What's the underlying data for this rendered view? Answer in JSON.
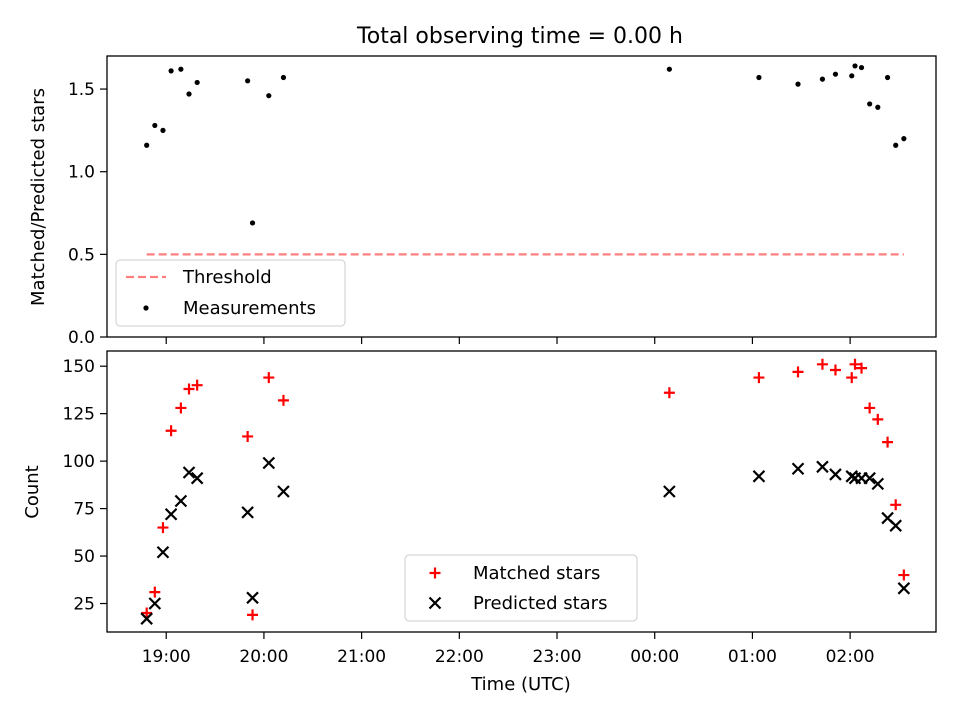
{
  "title": "Total observing time = 0.00 h",
  "time_ticks": [
    "19:00",
    "20:00",
    "21:00",
    "22:00",
    "23:00",
    "00:00",
    "01:00",
    "02:00"
  ],
  "chart_data": [
    {
      "type": "scatter",
      "ylabel": "Matched/Predicted stars",
      "xlabel": "",
      "ylim": [
        0.0,
        1.7
      ],
      "yticks": [
        "0.0",
        "0.5",
        "1.0",
        "1.5"
      ],
      "legend_placement": "lower-left",
      "threshold": {
        "name": "Threshold",
        "value": 0.5,
        "x_start": "18:48",
        "x_end": "02:33",
        "color": "#ff7f7f",
        "style": "dashed"
      },
      "series": [
        {
          "name": "Measurements",
          "color": "#000000",
          "marker": "dot",
          "x": [
            "18:48",
            "18:53",
            "18:58",
            "19:03",
            "19:09",
            "19:14",
            "19:19",
            "19:50",
            "19:53",
            "20:03",
            "20:12",
            "00:09",
            "01:04",
            "01:28",
            "01:43",
            "01:51",
            "02:01",
            "02:03",
            "02:07",
            "02:12",
            "02:17",
            "02:23",
            "02:28",
            "02:33"
          ],
          "y": [
            1.16,
            1.28,
            1.25,
            1.61,
            1.62,
            1.47,
            1.54,
            1.55,
            0.69,
            1.46,
            1.57,
            1.62,
            1.57,
            1.53,
            1.56,
            1.59,
            1.58,
            1.64,
            1.63,
            1.41,
            1.39,
            1.57,
            1.16,
            1.2
          ]
        }
      ]
    },
    {
      "type": "scatter",
      "ylabel": "Count",
      "xlabel": "Time (UTC)",
      "ylim": [
        10,
        158
      ],
      "yticks": [
        "25",
        "50",
        "75",
        "100",
        "125",
        "150"
      ],
      "legend_placement": "lower-center",
      "series": [
        {
          "name": "Matched stars",
          "color": "#ff0000",
          "marker": "plus",
          "x": [
            "18:48",
            "18:53",
            "18:58",
            "19:03",
            "19:09",
            "19:14",
            "19:19",
            "19:50",
            "19:53",
            "20:03",
            "20:12",
            "00:09",
            "01:04",
            "01:28",
            "01:43",
            "01:51",
            "02:01",
            "02:03",
            "02:07",
            "02:12",
            "02:17",
            "02:23",
            "02:28",
            "02:33"
          ],
          "y": [
            20,
            31,
            65,
            116,
            128,
            138,
            140,
            113,
            19,
            144,
            132,
            136,
            144,
            147,
            151,
            148,
            144,
            151,
            149,
            128,
            122,
            110,
            77,
            40
          ]
        },
        {
          "name": "Predicted stars",
          "color": "#000000",
          "marker": "x",
          "x": [
            "18:48",
            "18:53",
            "18:58",
            "19:03",
            "19:09",
            "19:14",
            "19:19",
            "19:50",
            "19:53",
            "20:03",
            "20:12",
            "00:09",
            "01:04",
            "01:28",
            "01:43",
            "01:51",
            "02:01",
            "02:03",
            "02:07",
            "02:12",
            "02:17",
            "02:23",
            "02:28",
            "02:33"
          ],
          "y": [
            17,
            25,
            52,
            72,
            79,
            94,
            91,
            73,
            28,
            99,
            84,
            84,
            92,
            96,
            97,
            93,
            92,
            91,
            91,
            91,
            88,
            70,
            66,
            33
          ]
        }
      ]
    }
  ]
}
